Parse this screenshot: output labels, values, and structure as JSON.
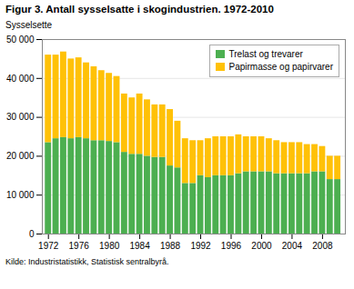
{
  "chart_data": {
    "type": "bar",
    "stacked": true,
    "title": "Figur 3. Antall sysselsatte i skogindustrien. 1972-2010",
    "ylabel": "Sysselsette",
    "source": "Kilde: Industristatistikk, Statistisk sentralbyrå.",
    "x": [
      1972,
      1973,
      1974,
      1975,
      1976,
      1977,
      1978,
      1979,
      1980,
      1981,
      1982,
      1983,
      1984,
      1985,
      1986,
      1987,
      1988,
      1989,
      1990,
      1991,
      1992,
      1993,
      1994,
      1995,
      1996,
      1997,
      1998,
      1999,
      2000,
      2001,
      2002,
      2003,
      2004,
      2005,
      2006,
      2007,
      2008,
      2009,
      2010
    ],
    "series": [
      {
        "name": "Trelast og trevarer",
        "color": "#4caf50",
        "values": [
          23500,
          24500,
          24800,
          24500,
          24800,
          24500,
          24000,
          24000,
          23800,
          23500,
          21000,
          20500,
          20500,
          20000,
          19700,
          19700,
          17500,
          17000,
          13000,
          13000,
          15000,
          14500,
          15000,
          15000,
          15000,
          15500,
          16000,
          16000,
          16000,
          16000,
          15500,
          15500,
          15500,
          15500,
          15500,
          16000,
          16000,
          14000,
          14000
        ]
      },
      {
        "name": "Papirmasse og papirvarer",
        "color": "#ffc107",
        "values": [
          22500,
          21500,
          22000,
          20500,
          20500,
          19500,
          19000,
          18000,
          17500,
          17000,
          15000,
          14500,
          15500,
          14500,
          13500,
          13500,
          14500,
          12000,
          11500,
          11000,
          9000,
          10000,
          10000,
          10000,
          10000,
          10000,
          9000,
          9000,
          9000,
          8500,
          8500,
          8000,
          8000,
          8000,
          7500,
          7000,
          6500,
          6000,
          6000
        ]
      }
    ],
    "xlim": [
      1971.2,
      2011
    ],
    "xticks": [
      1972,
      1976,
      1980,
      1984,
      1988,
      1992,
      1996,
      2000,
      2004,
      2008
    ],
    "ylim": [
      0,
      50000
    ],
    "yticks": [
      0,
      {
        "value": 10000,
        "label": "10 000"
      },
      {
        "value": 20000,
        "label": "20 000"
      },
      {
        "value": 30000,
        "label": "30 000"
      },
      {
        "value": 40000,
        "label": "40 000"
      },
      {
        "value": 50000,
        "label": "50 000"
      }
    ],
    "grid": true,
    "legend": "upper right"
  }
}
